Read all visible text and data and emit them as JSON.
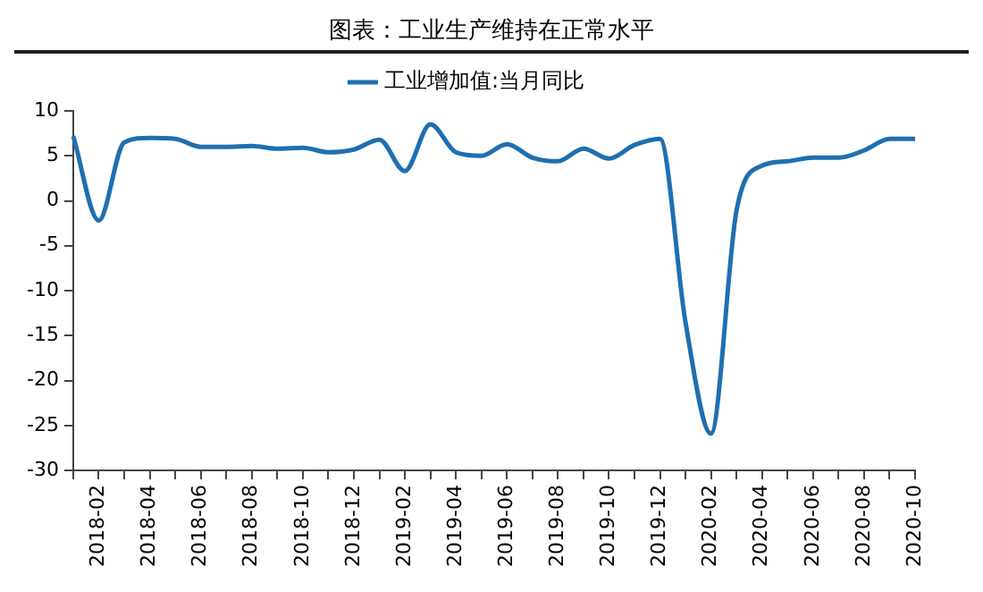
{
  "chart_data": {
    "type": "line",
    "title": "图表：工业生产维持在正常水平",
    "categories": [
      null,
      "2018-02",
      null,
      "2018-04",
      null,
      "2018-06",
      null,
      "2018-08",
      null,
      "2018-10",
      null,
      "2018-12",
      null,
      "2019-02",
      null,
      "2019-04",
      null,
      "2019-06",
      null,
      "2019-08",
      null,
      "2019-10",
      null,
      "2019-12",
      null,
      "2020-02",
      null,
      "2020-04",
      null,
      "2020-06",
      null,
      "2020-08",
      null,
      "2020-10"
    ],
    "series": [
      {
        "name": "工业增加值:当月同比",
        "color": "#1f6fb0",
        "values": [
          7.2,
          -2.2,
          6.5,
          7.0,
          6.9,
          6.0,
          6.0,
          6.1,
          5.8,
          5.9,
          5.4,
          5.7,
          6.8,
          3.3,
          8.5,
          5.4,
          5.0,
          6.3,
          4.8,
          4.4,
          5.8,
          4.7,
          6.2,
          6.9,
          -13.5,
          -25.9,
          -1.1,
          3.9,
          4.4,
          4.8,
          4.8,
          5.6,
          6.9,
          6.9
        ]
      }
    ],
    "ylim": [
      -30,
      10
    ],
    "yticks": [
      -30,
      -25,
      -20,
      -15,
      -10,
      -5,
      0,
      5,
      10
    ],
    "grid": false,
    "legend": "top",
    "marker": "none",
    "line_style": "solid"
  }
}
